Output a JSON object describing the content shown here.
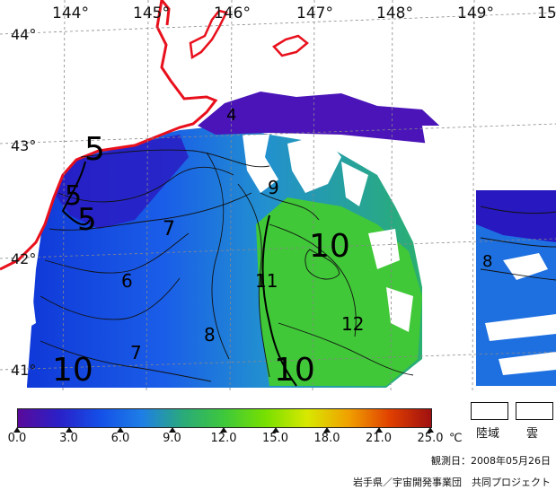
{
  "map": {
    "longitudes": [
      "144°",
      "145°",
      "146°",
      "147°",
      "148°",
      "149°",
      "15"
    ],
    "latitudes": [
      "44°",
      "43°",
      "42°",
      "41°"
    ],
    "contour_labels": [
      "5",
      "5",
      "5",
      "7",
      "6",
      "7",
      "8",
      "9",
      "10",
      "11",
      "12",
      "10",
      "10",
      "8",
      "4"
    ]
  },
  "legend": {
    "scale_colors": [
      "#5a0a9a",
      "#2a20c8",
      "#1450e8",
      "#1e7ee6",
      "#2aaa7a",
      "#3ec83a",
      "#78e000",
      "#d8e800",
      "#f0a000",
      "#e04000",
      "#a01010"
    ],
    "ticks": [
      "0.0",
      "3.0",
      "6.0",
      "9.0",
      "12.0",
      "15.0",
      "18.0",
      "21.0",
      "25.0"
    ],
    "unit": "℃",
    "land_label": "陸域",
    "cloud_label": "雲",
    "observation": "観測日：2008年05月26日",
    "credit": "岩手県／宇宙開発事業団　共同プロジェクト"
  }
}
